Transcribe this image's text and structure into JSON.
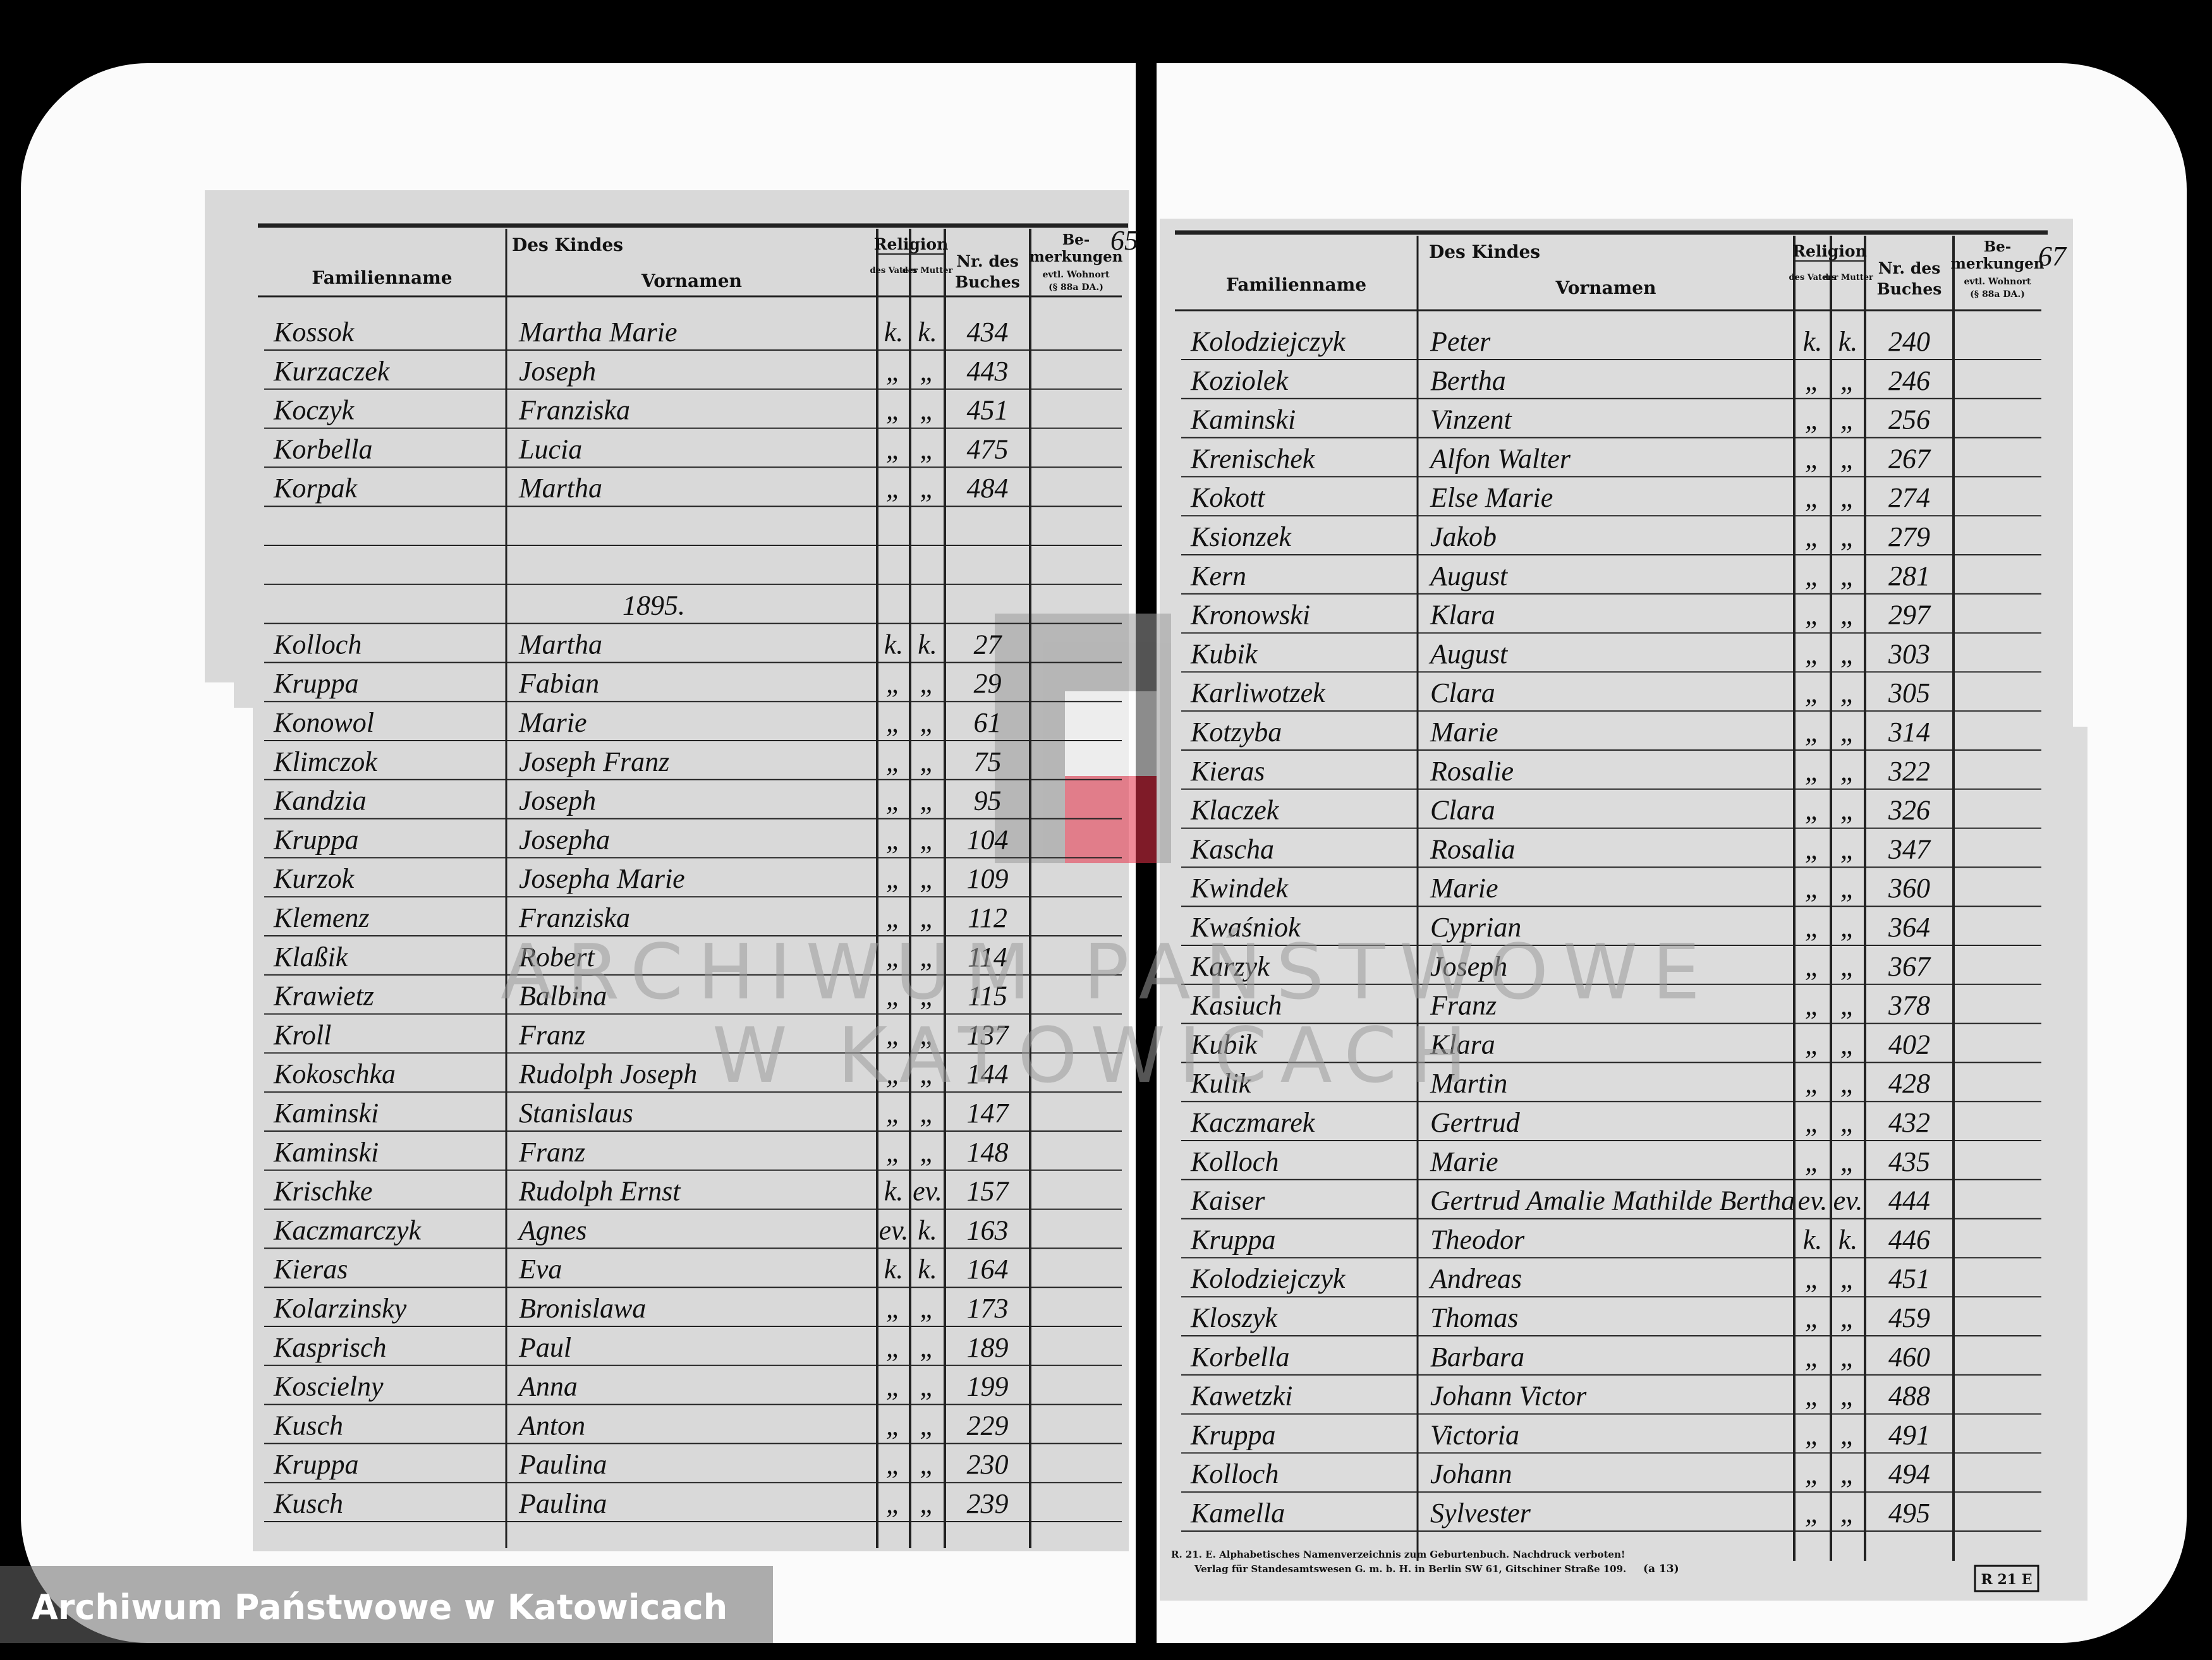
{
  "left_page": {
    "page_number": "65",
    "header": {
      "group": "Des Kindes",
      "surname": "Familienname",
      "given": "Vornamen",
      "religion": "Religion",
      "father": "des Vaters",
      "mother": "der Mutter",
      "nr_1": "Nr. des",
      "nr_2": "Buches",
      "remarks_1": "Be-",
      "remarks_2": "merkungen",
      "remarks_3": "evtl. Wohnort",
      "remarks_4": "(§ 88a DA.)"
    },
    "entries": [
      {
        "surname": "Kossok",
        "given": "Martha Marie",
        "father": "k.",
        "mother": "k.",
        "nr": 434
      },
      {
        "surname": "Kurzaczek",
        "given": "Joseph",
        "father": "„",
        "mother": "„",
        "nr": 443
      },
      {
        "surname": "Koczyk",
        "given": "Franziska",
        "father": "„",
        "mother": "„",
        "nr": 451
      },
      {
        "surname": "Korbella",
        "given": "Lucia",
        "father": "„",
        "mother": "„",
        "nr": 475
      },
      {
        "surname": "Korpak",
        "given": "Martha",
        "father": "„",
        "mother": "„",
        "nr": 484
      }
    ],
    "year": "1895.",
    "entries_1895": [
      {
        "surname": "Kolloch",
        "given": "Martha",
        "father": "k.",
        "mother": "k.",
        "nr": 27
      },
      {
        "surname": "Kruppa",
        "given": "Fabian",
        "father": "„",
        "mother": "„",
        "nr": 29
      },
      {
        "surname": "Konowol",
        "given": "Marie",
        "father": "„",
        "mother": "„",
        "nr": 61
      },
      {
        "surname": "Klimczok",
        "given": "Joseph Franz",
        "father": "„",
        "mother": "„",
        "nr": 75
      },
      {
        "surname": "Kandzia",
        "given": "Joseph",
        "father": "„",
        "mother": "„",
        "nr": 95
      },
      {
        "surname": "Kruppa",
        "given": "Josepha",
        "father": "„",
        "mother": "„",
        "nr": 104
      },
      {
        "surname": "Kurzok",
        "given": "Josepha Marie",
        "father": "„",
        "mother": "„",
        "nr": 109
      },
      {
        "surname": "Klemenz",
        "given": "Franziska",
        "father": "„",
        "mother": "„",
        "nr": 112
      },
      {
        "surname": "Klaßik",
        "given": "Robert",
        "father": "„",
        "mother": "„",
        "nr": 114
      },
      {
        "surname": "Krawietz",
        "given": "Balbina",
        "father": "„",
        "mother": "„",
        "nr": 115
      },
      {
        "surname": "Kroll",
        "given": "Franz",
        "father": "„",
        "mother": "„",
        "nr": 137
      },
      {
        "surname": "Kokoschka",
        "given": "Rudolph Joseph",
        "father": "„",
        "mother": "„",
        "nr": 144
      },
      {
        "surname": "Kaminski",
        "given": "Stanislaus",
        "father": "„",
        "mother": "„",
        "nr": 147
      },
      {
        "surname": "Kaminski",
        "given": "Franz",
        "father": "„",
        "mother": "„",
        "nr": 148
      },
      {
        "surname": "Krischke",
        "given": "Rudolph Ernst",
        "father": "k.",
        "mother": "ev.",
        "nr": 157
      },
      {
        "surname": "Kaczmarczyk",
        "given": "Agnes",
        "father": "ev.",
        "mother": "k.",
        "nr": 163
      },
      {
        "surname": "Kieras",
        "given": "Eva",
        "father": "k.",
        "mother": "k.",
        "nr": 164
      },
      {
        "surname": "Kolarzinsky",
        "given": "Bronislawa",
        "father": "„",
        "mother": "„",
        "nr": 173
      },
      {
        "surname": "Kasprisch",
        "given": "Paul",
        "father": "„",
        "mother": "„",
        "nr": 189
      },
      {
        "surname": "Koscielny",
        "given": "Anna",
        "father": "„",
        "mother": "„",
        "nr": 199
      },
      {
        "surname": "Kusch",
        "given": "Anton",
        "father": "„",
        "mother": "„",
        "nr": 229
      },
      {
        "surname": "Kruppa",
        "given": "Paulina",
        "father": "„",
        "mother": "„",
        "nr": 230
      },
      {
        "surname": "Kusch",
        "given": "Paulina",
        "father": "„",
        "mother": "„",
        "nr": 239
      }
    ]
  },
  "right_page": {
    "page_number": "67",
    "header": {
      "group": "Des Kindes",
      "surname": "Familienname",
      "given": "Vornamen",
      "religion": "Religion",
      "father": "des Vaters",
      "mother": "der Mutter",
      "nr_1": "Nr. des",
      "nr_2": "Buches",
      "remarks_1": "Be-",
      "remarks_2": "merkungen",
      "remarks_3": "evtl. Wohnort",
      "remarks_4": "(§ 88a DA.)"
    },
    "entries": [
      {
        "surname": "Kolodziejczyk",
        "given": "Peter",
        "father": "k.",
        "mother": "k.",
        "nr": 240
      },
      {
        "surname": "Koziolek",
        "given": "Bertha",
        "father": "„",
        "mother": "„",
        "nr": 246
      },
      {
        "surname": "Kaminski",
        "given": "Vinzent",
        "father": "„",
        "mother": "„",
        "nr": 256
      },
      {
        "surname": "Krenischek",
        "given": "Alfon Walter",
        "father": "„",
        "mother": "„",
        "nr": 267
      },
      {
        "surname": "Kokott",
        "given": "Else Marie",
        "father": "„",
        "mother": "„",
        "nr": 274
      },
      {
        "surname": "Ksionzek",
        "given": "Jakob",
        "father": "„",
        "mother": "„",
        "nr": 279
      },
      {
        "surname": "Kern",
        "given": "August",
        "father": "„",
        "mother": "„",
        "nr": 281
      },
      {
        "surname": "Kronowski",
        "given": "Klara",
        "father": "„",
        "mother": "„",
        "nr": 297
      },
      {
        "surname": "Kubik",
        "given": "August",
        "father": "„",
        "mother": "„",
        "nr": 303
      },
      {
        "surname": "Karliwotzek",
        "given": "Clara",
        "father": "„",
        "mother": "„",
        "nr": 305
      },
      {
        "surname": "Kotzyba",
        "given": "Marie",
        "father": "„",
        "mother": "„",
        "nr": 314
      },
      {
        "surname": "Kieras",
        "given": "Rosalie",
        "father": "„",
        "mother": "„",
        "nr": 322
      },
      {
        "surname": "Klaczek",
        "given": "Clara",
        "father": "„",
        "mother": "„",
        "nr": 326
      },
      {
        "surname": "Kascha",
        "given": "Rosalia",
        "father": "„",
        "mother": "„",
        "nr": 347
      },
      {
        "surname": "Kwindek",
        "given": "Marie",
        "father": "„",
        "mother": "„",
        "nr": 360
      },
      {
        "surname": "Kwaśniok",
        "given": "Cyprian",
        "father": "„",
        "mother": "„",
        "nr": 364
      },
      {
        "surname": "Karzyk",
        "given": "Joseph",
        "father": "„",
        "mother": "„",
        "nr": 367
      },
      {
        "surname": "Kasiuch",
        "given": "Franz",
        "father": "„",
        "mother": "„",
        "nr": 378
      },
      {
        "surname": "Kubik",
        "given": "Klara",
        "father": "„",
        "mother": "„",
        "nr": 402
      },
      {
        "surname": "Kulik",
        "given": "Martin",
        "father": "„",
        "mother": "„",
        "nr": 428
      },
      {
        "surname": "Kaczmarek",
        "given": "Gertrud",
        "father": "„",
        "mother": "„",
        "nr": 432
      },
      {
        "surname": "Kolloch",
        "given": "Marie",
        "father": "„",
        "mother": "„",
        "nr": 435
      },
      {
        "surname": "Kaiser",
        "given": "Gertrud Amalie Mathilde Bertha",
        "father": "ev.",
        "mother": "ev.",
        "nr": 444
      },
      {
        "surname": "Kruppa",
        "given": "Theodor",
        "father": "k.",
        "mother": "k.",
        "nr": 446
      },
      {
        "surname": "Kolodziejczyk",
        "given": "Andreas",
        "father": "„",
        "mother": "„",
        "nr": 451
      },
      {
        "surname": "Kloszyk",
        "given": "Thomas",
        "father": "„",
        "mother": "„",
        "nr": 459
      },
      {
        "surname": "Korbella",
        "given": "Barbara",
        "father": "„",
        "mother": "„",
        "nr": 460
      },
      {
        "surname": "Kawetzki",
        "given": "Johann Victor",
        "father": "„",
        "mother": "„",
        "nr": 488
      },
      {
        "surname": "Kruppa",
        "given": "Victoria",
        "father": "„",
        "mother": "„",
        "nr": 491
      },
      {
        "surname": "Kolloch",
        "given": "Johann",
        "father": "„",
        "mother": "„",
        "nr": 494
      },
      {
        "surname": "Kamella",
        "given": "Sylvester",
        "father": "„",
        "mother": "„",
        "nr": 495
      }
    ],
    "imprint_1": "R. 21. E. Alphabetisches Namenverzeichnis zum Geburtenbuch. Nachdruck verboten!",
    "imprint_2": "Verlag für Standesamtswesen G. m. b. H. in Berlin SW 61, Gitschiner Straße 109.",
    "imprint_code": "(a 13)",
    "form_code": "R 21 E"
  },
  "watermark": [
    "ARCHIWUM PAŃSTWOWE",
    "W KATOWICACH"
  ],
  "caption": "Archiwum Państwowe w Katowicach"
}
